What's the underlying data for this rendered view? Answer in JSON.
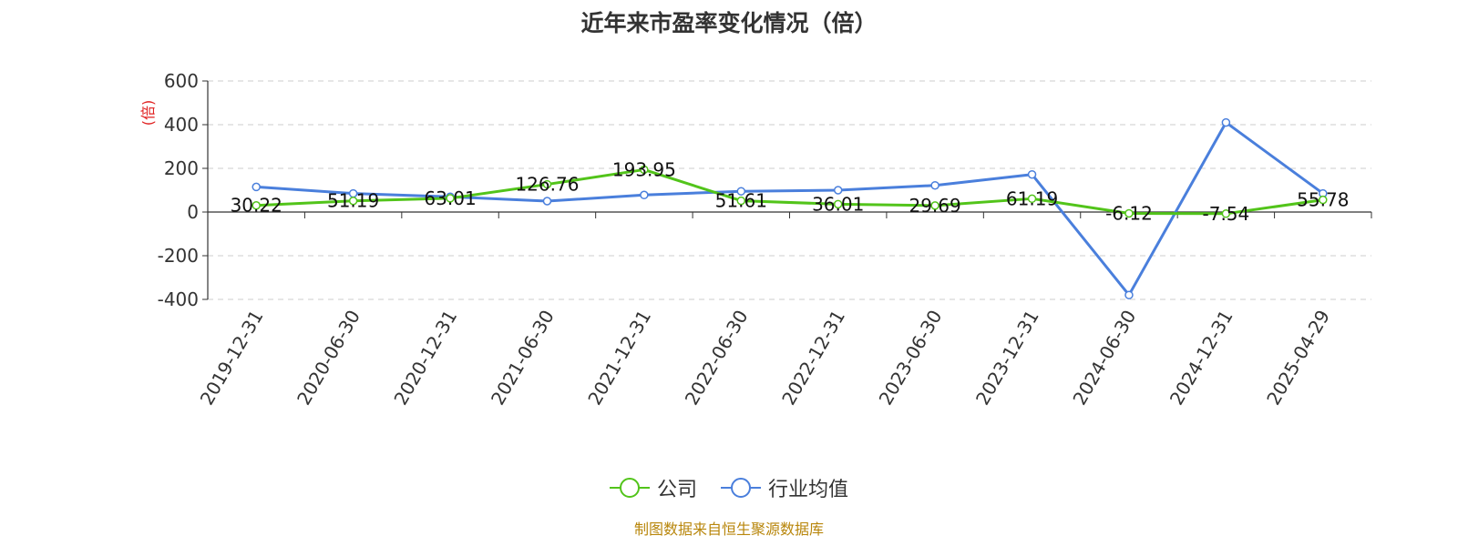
{
  "chart_data": {
    "type": "line",
    "title": "近年来市盈率变化情况（倍）",
    "unit_label": "(倍)",
    "categories": [
      "2019-12-31",
      "2020-06-30",
      "2020-12-31",
      "2021-06-30",
      "2021-12-31",
      "2022-06-30",
      "2022-12-31",
      "2023-06-30",
      "2023-12-31",
      "2024-06-30",
      "2024-12-31",
      "2025-04-29"
    ],
    "ylim": [
      -400,
      600
    ],
    "yticks": [
      -400,
      -200,
      0,
      200,
      400,
      600
    ],
    "grid": true,
    "legend_position": "bottom",
    "series": [
      {
        "name": "公司",
        "color": "#52c41a",
        "values": [
          30.22,
          51.19,
          63.01,
          126.76,
          193.95,
          51.61,
          36.01,
          29.69,
          61.19,
          -6.12,
          -7.54,
          55.78
        ],
        "labels": [
          "30.22",
          "51.19",
          "63.01",
          "126.76",
          "193.95",
          "51.61",
          "36.01",
          "29.69",
          "61.19",
          "-6.12",
          "-7.54",
          "55.78"
        ]
      },
      {
        "name": "行业均值",
        "color": "#4a7fdc",
        "values": [
          115,
          85,
          70,
          50,
          78,
          95,
          100,
          122,
          172,
          -380,
          410,
          85
        ]
      }
    ]
  },
  "footer": {
    "source": "制图数据来自恒生聚源数据库"
  }
}
